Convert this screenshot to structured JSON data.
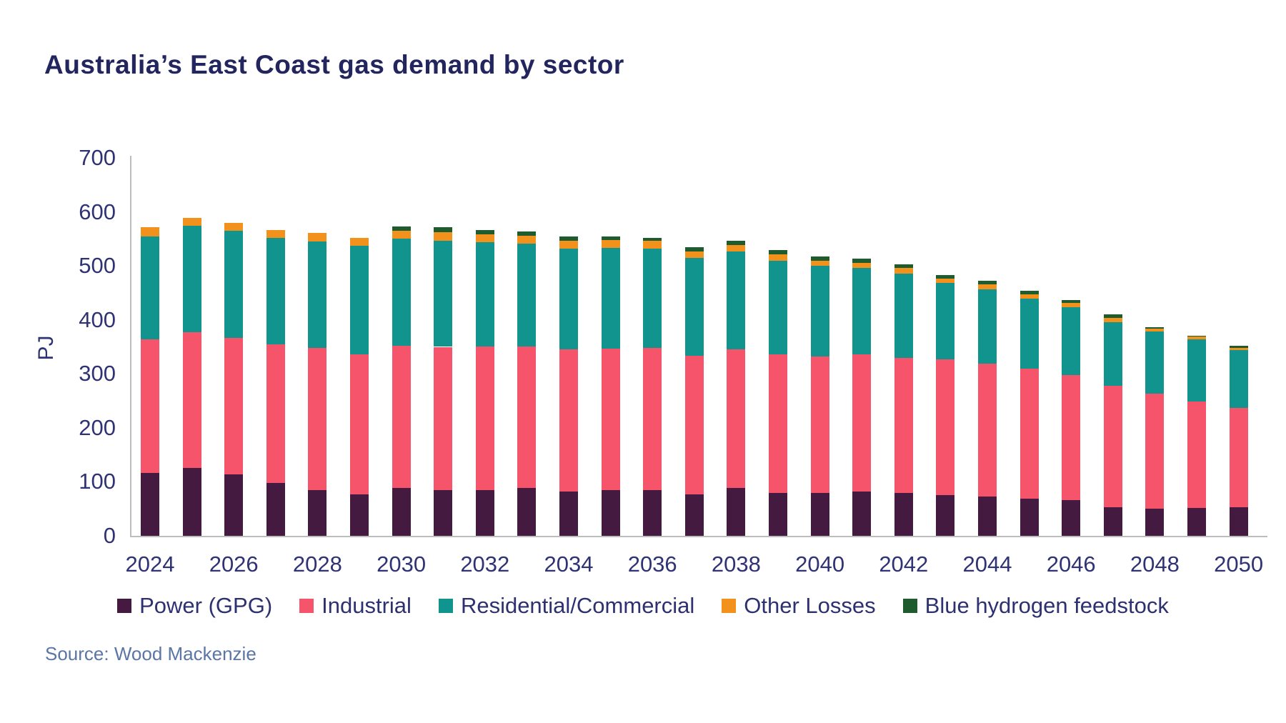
{
  "title": "Australia’s East Coast gas demand by sector",
  "source": "Source: Wood Mackenzie",
  "colors": {
    "title_text": "#23265e",
    "axis_text": "#303373",
    "legend_text": "#2e3170",
    "source_text": "#5b76a4",
    "axis_line": "#bdbdbd",
    "power": "#451a41",
    "industrial": "#f6546a",
    "residential": "#12948e",
    "other_losses": "#f2921d",
    "blue_hydrogen": "#1e5c30"
  },
  "chart_data": {
    "type": "bar",
    "stacked": true,
    "title": "Australia’s East Coast gas demand by sector",
    "xlabel": "",
    "ylabel": "PJ",
    "ylim": [
      0,
      700
    ],
    "ytick_step": 100,
    "xtick_every": 2,
    "grid": false,
    "legend_position": "bottom",
    "categories": [
      2024,
      2025,
      2026,
      2027,
      2028,
      2029,
      2030,
      2031,
      2032,
      2033,
      2034,
      2035,
      2036,
      2037,
      2038,
      2039,
      2040,
      2041,
      2042,
      2043,
      2044,
      2045,
      2046,
      2047,
      2048,
      2049,
      2050
    ],
    "series": [
      {
        "name": "Power (GPG)",
        "color_key": "power",
        "values": [
          117,
          126,
          114,
          98,
          85,
          77,
          88,
          85,
          85,
          88,
          82,
          85,
          85,
          77,
          89,
          80,
          79,
          82,
          79,
          76,
          73,
          69,
          66,
          53,
          50,
          52,
          53
        ]
      },
      {
        "name": "Industrial",
        "color_key": "industrial",
        "values": [
          247,
          251,
          253,
          257,
          263,
          259,
          264,
          265,
          266,
          263,
          263,
          262,
          263,
          256,
          256,
          256,
          253,
          254,
          251,
          251,
          246,
          240,
          232,
          225,
          213,
          197,
          184
        ]
      },
      {
        "name": "Residential/Commercial",
        "color_key": "residential",
        "values": [
          191,
          197,
          198,
          197,
          197,
          201,
          199,
          197,
          193,
          190,
          187,
          186,
          184,
          182,
          181,
          174,
          168,
          160,
          156,
          142,
          138,
          130,
          126,
          118,
          116,
          115,
          107
        ]
      },
      {
        "name": "Other Losses",
        "color_key": "other_losses",
        "values": [
          16,
          15,
          14,
          15,
          16,
          15,
          14,
          16,
          15,
          15,
          15,
          15,
          14,
          12,
          13,
          11,
          10,
          10,
          10,
          8,
          9,
          8,
          7,
          8,
          5,
          5,
          4
        ]
      },
      {
        "name": "Blue hydrogen feedstock",
        "color_key": "blue_hydrogen",
        "values": [
          0,
          0,
          0,
          0,
          0,
          0,
          8,
          8,
          8,
          8,
          7,
          7,
          6,
          7,
          7,
          8,
          7,
          8,
          7,
          6,
          7,
          7,
          6,
          6,
          3,
          2,
          4
        ]
      }
    ]
  }
}
